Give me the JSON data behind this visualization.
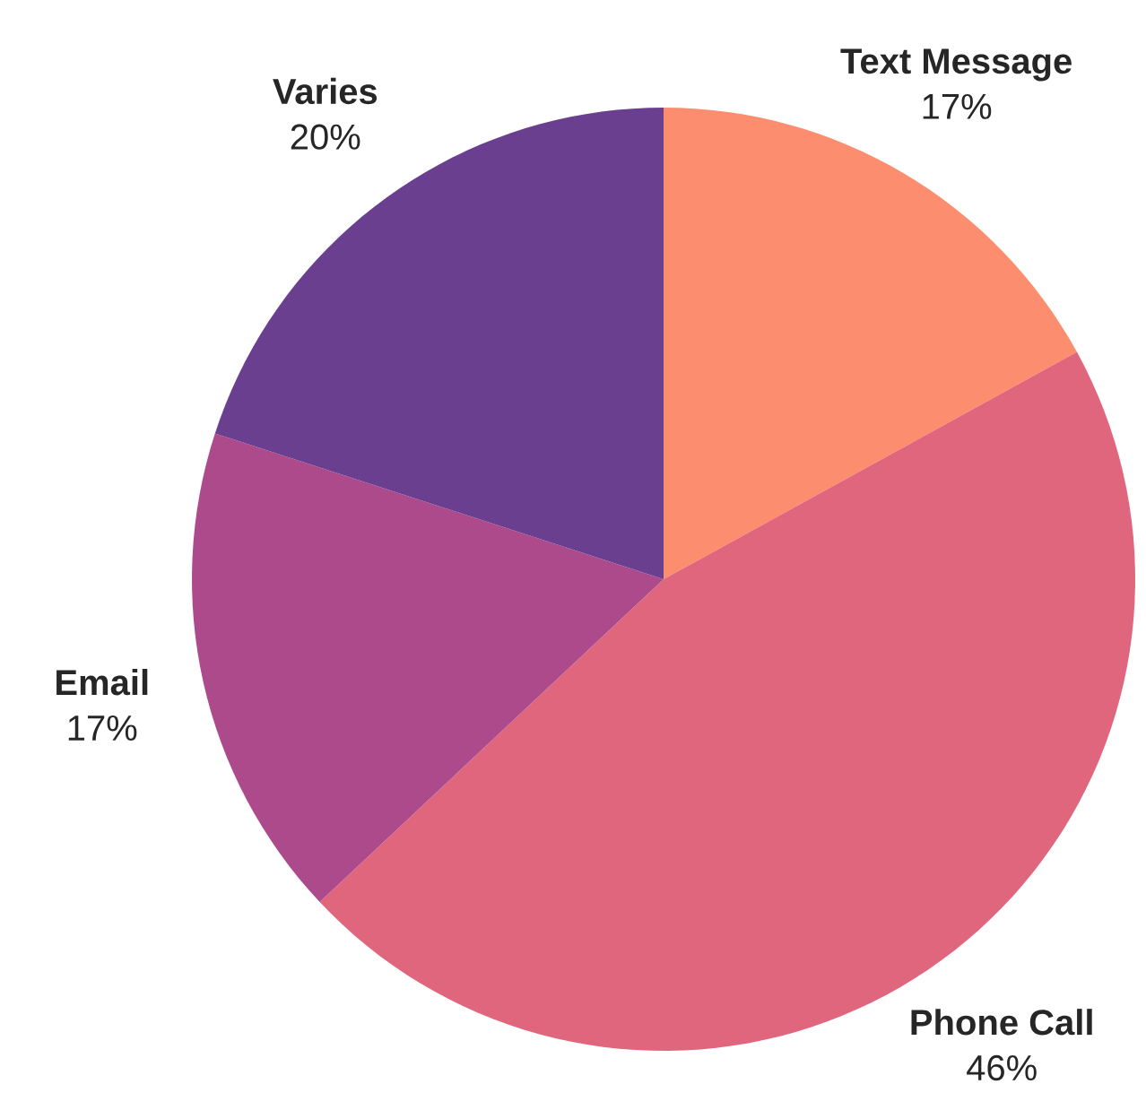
{
  "chart_data": {
    "type": "pie",
    "categories": [
      "Text Message",
      "Phone Call",
      "Email",
      "Varies"
    ],
    "values": [
      17,
      46,
      17,
      20
    ],
    "colors": [
      "#fc8d6e",
      "#e0667d",
      "#ad4a8c",
      "#6a3f8f"
    ],
    "value_labels": [
      "17%",
      "46%",
      "17%",
      "20%"
    ]
  }
}
